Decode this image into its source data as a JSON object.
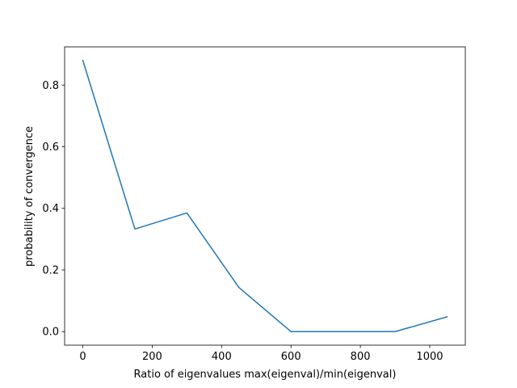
{
  "chart_data": {
    "type": "line",
    "title": "",
    "xlabel": "Ratio of eigenvalues max(eigenval)/min(eigenval)",
    "ylabel": "probability of convergence",
    "xlim": [
      -52.5,
      1102.5
    ],
    "ylim": [
      -0.044,
      0.924
    ],
    "xticks": [
      0,
      200,
      400,
      600,
      800,
      1000
    ],
    "xtick_labels": [
      "0",
      "200",
      "400",
      "600",
      "800",
      "1000"
    ],
    "yticks": [
      0.0,
      0.2,
      0.4,
      0.6,
      0.8
    ],
    "ytick_labels": [
      "0.0",
      "0.2",
      "0.4",
      "0.6",
      "0.8"
    ],
    "grid": false,
    "legend": "none",
    "series": [
      {
        "color": "#1f77b4",
        "x": [
          0,
          150,
          300,
          450,
          600,
          750,
          900,
          1050
        ],
        "y": [
          0.88,
          0.333,
          0.385,
          0.143,
          0.0,
          0.0,
          0.0,
          0.048
        ]
      }
    ]
  }
}
